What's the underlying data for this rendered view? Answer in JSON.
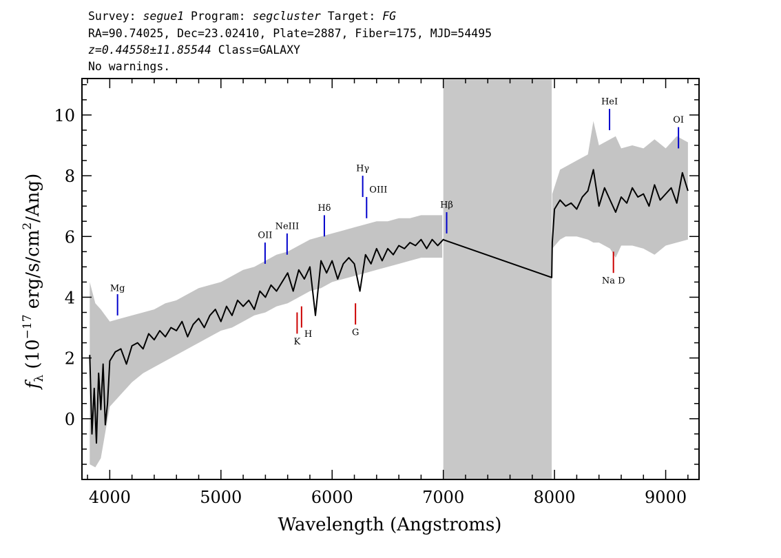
{
  "header": {
    "line1": {
      "survey_label": "Survey: ",
      "survey": "segue1",
      "program_label": " Program: ",
      "program": "segcluster",
      "target_label": " Target: ",
      "target": "FG"
    },
    "line2": "RA=90.74025, Dec=23.02410, Plate=2887, Fiber=175, MJD=54495",
    "line3": {
      "z": "z=0.44558±11.85544",
      "class": " Class=GALAXY"
    },
    "line4": "No warnings."
  },
  "chart_data": {
    "type": "line",
    "xlabel": "Wavelength (Angstroms)",
    "ylabel": {
      "f": "f",
      "sub": "λ",
      "open": " (10",
      "exp": "−17",
      "mid": " erg/s/cm",
      "sq": "2",
      "close": "/Ang)"
    },
    "xlim": [
      3750,
      9300
    ],
    "ylim": [
      -2.0,
      11.2
    ],
    "x_ticks": [
      4000,
      5000,
      6000,
      7000,
      8000,
      9000
    ],
    "y_ticks": [
      0,
      2,
      4,
      6,
      8,
      10
    ],
    "masked_region": [
      7000,
      7975
    ],
    "series": [
      {
        "role": "error",
        "color": "#c4c4c4",
        "x": [
          3820,
          3870,
          3920,
          4000,
          4100,
          4200,
          4300,
          4400,
          4500,
          4600,
          4700,
          4800,
          4900,
          5000,
          5100,
          5200,
          5300,
          5400,
          5500,
          5600,
          5700,
          5800,
          5900,
          6000,
          6100,
          6200,
          6300,
          6400,
          6500,
          6600,
          6700,
          6800,
          6900,
          6990
        ],
        "low": [
          -1.5,
          -1.6,
          -1.3,
          0.4,
          0.8,
          1.2,
          1.5,
          1.7,
          1.9,
          2.1,
          2.3,
          2.5,
          2.7,
          2.9,
          3.0,
          3.2,
          3.4,
          3.5,
          3.7,
          3.8,
          4.0,
          4.2,
          4.3,
          4.5,
          4.6,
          4.7,
          4.8,
          4.9,
          5.0,
          5.1,
          5.2,
          5.3,
          5.3,
          5.3
        ],
        "high": [
          4.5,
          3.8,
          3.6,
          3.2,
          3.3,
          3.4,
          3.5,
          3.6,
          3.8,
          3.9,
          4.1,
          4.3,
          4.4,
          4.5,
          4.7,
          4.9,
          5.0,
          5.2,
          5.4,
          5.5,
          5.7,
          5.9,
          6.0,
          6.1,
          6.2,
          6.3,
          6.4,
          6.5,
          6.5,
          6.6,
          6.6,
          6.7,
          6.7,
          6.7
        ]
      },
      {
        "role": "error",
        "color": "#c4c4c4",
        "x": [
          7980,
          8050,
          8100,
          8200,
          8300,
          8350,
          8400,
          8500,
          8550,
          8600,
          8700,
          8800,
          8900,
          9000,
          9100,
          9200
        ],
        "low": [
          5.6,
          5.9,
          6.0,
          6.0,
          5.9,
          5.8,
          5.8,
          5.6,
          5.3,
          5.7,
          5.7,
          5.6,
          5.4,
          5.7,
          5.8,
          5.9
        ],
        "high": [
          7.4,
          8.2,
          8.3,
          8.5,
          8.7,
          9.8,
          9.0,
          9.2,
          9.3,
          8.9,
          9.0,
          8.9,
          9.2,
          8.9,
          9.3,
          9.1
        ]
      },
      {
        "role": "flux",
        "color": "#000000",
        "x": [
          3820,
          3840,
          3860,
          3880,
          3900,
          3920,
          3940,
          3960,
          3980,
          4000,
          4050,
          4100,
          4150,
          4200,
          4250,
          4300,
          4350,
          4400,
          4450,
          4500,
          4550,
          4600,
          4650,
          4700,
          4750,
          4800,
          4850,
          4900,
          4950,
          5000,
          5050,
          5100,
          5150,
          5200,
          5250,
          5300,
          5350,
          5400,
          5450,
          5500,
          5550,
          5600,
          5650,
          5700,
          5750,
          5800,
          5850,
          5900,
          5950,
          6000,
          6050,
          6100,
          6150,
          6200,
          6250,
          6300,
          6350,
          6400,
          6450,
          6500,
          6550,
          6600,
          6650,
          6700,
          6750,
          6800,
          6850,
          6900,
          6950,
          7000,
          7010,
          7975,
          7980,
          8000,
          8050,
          8100,
          8150,
          8200,
          8250,
          8300,
          8350,
          8400,
          8450,
          8500,
          8550,
          8600,
          8650,
          8700,
          8750,
          8800,
          8850,
          8900,
          8950,
          9000,
          9050,
          9100,
          9150,
          9200
        ],
        "y": [
          2.1,
          -0.5,
          1.0,
          -0.8,
          1.5,
          0.3,
          1.8,
          -0.2,
          0.5,
          1.9,
          2.2,
          2.3,
          1.8,
          2.4,
          2.5,
          2.3,
          2.8,
          2.6,
          2.9,
          2.7,
          3.0,
          2.9,
          3.2,
          2.7,
          3.1,
          3.3,
          3.0,
          3.4,
          3.6,
          3.2,
          3.7,
          3.4,
          3.9,
          3.7,
          3.9,
          3.6,
          4.2,
          4.0,
          4.4,
          4.2,
          4.5,
          4.8,
          4.2,
          4.9,
          4.6,
          5.0,
          3.4,
          5.2,
          4.8,
          5.2,
          4.6,
          5.1,
          5.3,
          5.1,
          4.2,
          5.4,
          5.1,
          5.6,
          5.2,
          5.6,
          5.4,
          5.7,
          5.6,
          5.8,
          5.7,
          5.9,
          5.6,
          5.9,
          5.7,
          5.9,
          5.88,
          4.65,
          5.8,
          6.9,
          7.2,
          7.0,
          7.1,
          6.9,
          7.3,
          7.5,
          8.2,
          7.0,
          7.6,
          7.2,
          6.8,
          7.3,
          7.1,
          7.6,
          7.3,
          7.4,
          7.0,
          7.7,
          7.2,
          7.4,
          7.6,
          7.1,
          8.1,
          7.5
        ]
      }
    ],
    "spectral_lines": [
      {
        "label": "Mg",
        "x": 4070,
        "y1": 3.4,
        "y2": 4.1,
        "label_y": 4.2,
        "color": "#0000cc",
        "side": "above"
      },
      {
        "label": "OII",
        "x": 5397,
        "y1": 5.1,
        "y2": 5.8,
        "label_y": 5.95,
        "color": "#0000cc",
        "side": "above"
      },
      {
        "label": "NeIII",
        "x": 5595,
        "y1": 5.4,
        "y2": 6.1,
        "label_y": 6.25,
        "color": "#0000cc",
        "side": "above"
      },
      {
        "label": "Hδ",
        "x": 5930,
        "y1": 6.0,
        "y2": 6.7,
        "label_y": 6.85,
        "color": "#0000cc",
        "side": "above"
      },
      {
        "label": "Hγ",
        "x": 6275,
        "y1": 7.3,
        "y2": 8.0,
        "label_y": 8.15,
        "color": "#0000cc",
        "side": "above"
      },
      {
        "label": "OIII",
        "x": 6310,
        "y1": 6.6,
        "y2": 7.3,
        "label_y": 7.45,
        "color": "#0000cc",
        "side": "above",
        "anchor": "start"
      },
      {
        "label": "Hβ",
        "x": 7030,
        "y1": 6.1,
        "y2": 6.8,
        "label_y": 6.95,
        "color": "#0000cc",
        "side": "above"
      },
      {
        "label": "HeI",
        "x": 8495,
        "y1": 9.5,
        "y2": 10.2,
        "label_y": 10.35,
        "color": "#0000cc",
        "side": "above"
      },
      {
        "label": "OI",
        "x": 9115,
        "y1": 8.9,
        "y2": 9.6,
        "label_y": 9.75,
        "color": "#0000cc",
        "side": "above"
      },
      {
        "label": "K",
        "x": 5685,
        "y1": 2.8,
        "y2": 3.5,
        "label_y": 2.45,
        "color": "#cc0000",
        "side": "below"
      },
      {
        "label": "H",
        "x": 5725,
        "y1": 3.0,
        "y2": 3.7,
        "label_y": 2.7,
        "color": "#cc0000",
        "side": "below",
        "anchor": "start"
      },
      {
        "label": "G",
        "x": 6210,
        "y1": 3.1,
        "y2": 3.8,
        "label_y": 2.75,
        "color": "#cc0000",
        "side": "below"
      },
      {
        "label": "Na D",
        "x": 8530,
        "y1": 4.8,
        "y2": 5.5,
        "label_y": 4.45,
        "color": "#cc0000",
        "side": "below"
      }
    ]
  }
}
